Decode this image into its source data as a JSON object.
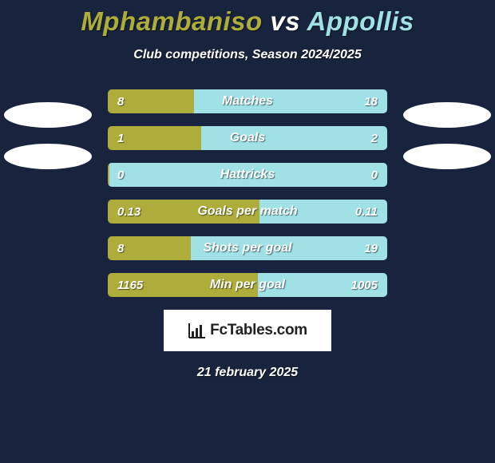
{
  "title": {
    "player1": "Mphambaniso",
    "vs": "vs",
    "player2": "Appollis",
    "color1": "#aead3c",
    "color2": "#a0e1e6"
  },
  "subtitle": "Club competitions, Season 2024/2025",
  "colors": {
    "left": "#aead3c",
    "right": "#a0e1e6",
    "background": "#18243d"
  },
  "ellipses": {
    "left_top1": 122,
    "left_top2": 174,
    "right_top1": 122,
    "right_top2": 174
  },
  "rows": [
    {
      "label": "Matches",
      "left_val": "8",
      "right_val": "18",
      "left_pct": 30.8,
      "right_pct": 69.2
    },
    {
      "label": "Goals",
      "left_val": "1",
      "right_val": "2",
      "left_pct": 33.3,
      "right_pct": 66.7
    },
    {
      "label": "Hattricks",
      "left_val": "0",
      "right_val": "0",
      "left_pct": 0.5,
      "right_pct": 99.5
    },
    {
      "label": "Goals per match",
      "left_val": "0.13",
      "right_val": "0.11",
      "left_pct": 54.2,
      "right_pct": 45.8
    },
    {
      "label": "Shots per goal",
      "left_val": "8",
      "right_val": "19",
      "left_pct": 29.6,
      "right_pct": 70.4
    },
    {
      "label": "Min per goal",
      "left_val": "1165",
      "right_val": "1005",
      "left_pct": 53.7,
      "right_pct": 46.3
    }
  ],
  "logo": {
    "text": "FcTables.com"
  },
  "date": "21 february 2025"
}
